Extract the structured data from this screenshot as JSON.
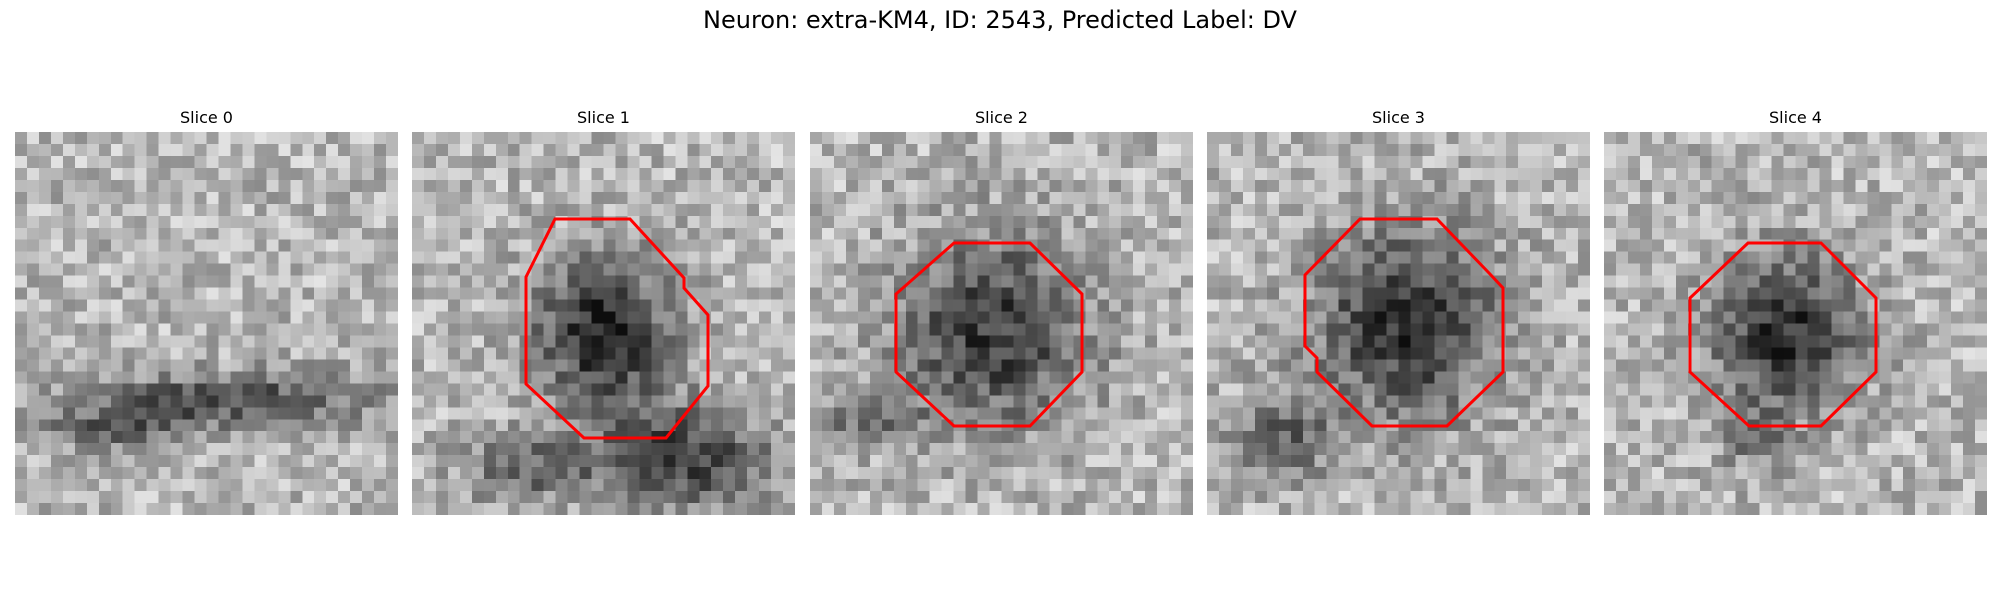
{
  "figure": {
    "title": "Neuron: extra-KM4, ID: 2543, Predicted Label: DV"
  },
  "panels": [
    {
      "title": "Slice 0",
      "has_outline": false
    },
    {
      "title": "Slice 1",
      "has_outline": true
    },
    {
      "title": "Slice 2",
      "has_outline": true
    },
    {
      "title": "Slice 3",
      "has_outline": true
    },
    {
      "title": "Slice 4",
      "has_outline": true
    }
  ],
  "colors": {
    "outline": "#ff0000",
    "image_colormap": "grayscale"
  }
}
